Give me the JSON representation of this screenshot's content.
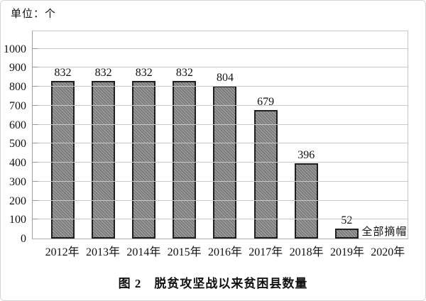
{
  "chart_data": {
    "type": "bar",
    "title": "图 2　脱贫攻坚战以来贫困县数量",
    "unit_label": "单位：个",
    "categories": [
      "2012年",
      "2013年",
      "2014年",
      "2015年",
      "2016年",
      "2017年",
      "2018年",
      "2019年",
      "2020年"
    ],
    "values": [
      832,
      832,
      832,
      832,
      804,
      679,
      396,
      52,
      null
    ],
    "value_labels": [
      "832",
      "832",
      "832",
      "832",
      "804",
      "679",
      "396",
      "52",
      ""
    ],
    "annotation": {
      "text": "全部摘帽",
      "category_index": 7
    },
    "xlabel": "",
    "ylabel": "",
    "y_axis": {
      "min": 0,
      "max": 1000,
      "tick_step": 100,
      "display_max": 1100
    },
    "grid": true,
    "legend": false,
    "colors": {
      "bar_fill": "#8a8a8a",
      "bar_hatch_line": "#767676",
      "bar_border": "#1f1f1f",
      "gridline": "#c9c9c9",
      "axis": "#9e9e9e",
      "text": "#111111",
      "background": "#ffffff"
    },
    "bar_style": "diagonal-hatch"
  }
}
